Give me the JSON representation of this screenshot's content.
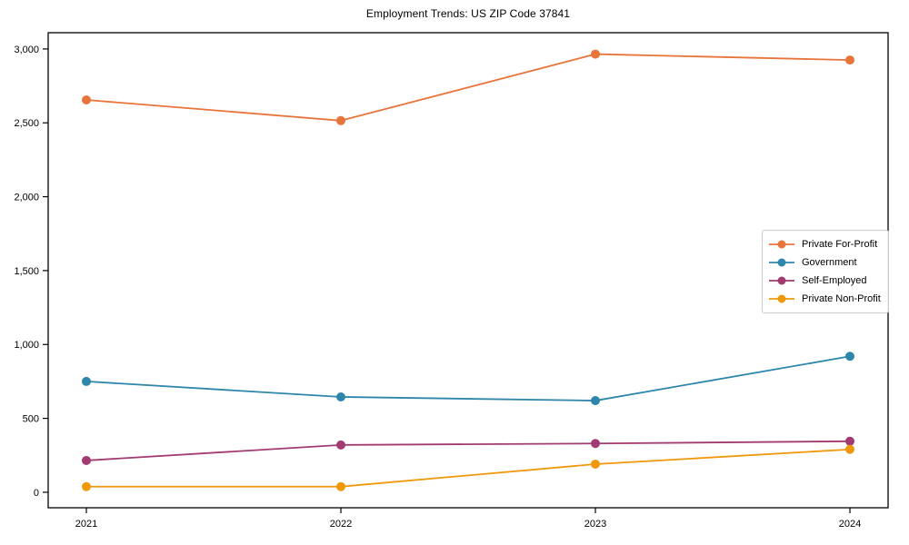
{
  "chart_data": {
    "type": "line",
    "title": "Employment Trends: US ZIP Code 37841",
    "x": [
      2021,
      2022,
      2023,
      2024
    ],
    "x_tick_labels": [
      "2021",
      "2022",
      "2023",
      "2024"
    ],
    "series": [
      {
        "name": "Private For-Profit",
        "color": "#E8743B",
        "values": [
          2655,
          2515,
          2965,
          2925
        ]
      },
      {
        "name": "Government",
        "color": "#2E86AB",
        "values": [
          750,
          645,
          620,
          920
        ]
      },
      {
        "name": "Self-Employed",
        "color": "#A23B72",
        "values": [
          215,
          320,
          330,
          345
        ]
      },
      {
        "name": "Private Non-Profit",
        "color": "#F0980B",
        "values": [
          38,
          38,
          190,
          290
        ]
      }
    ],
    "yticks": [
      0,
      500,
      1000,
      1500,
      2000,
      2500,
      3000
    ],
    "ytick_labels": [
      "0",
      "500",
      "1,000",
      "1,500",
      "2,000",
      "2,500",
      "3,000"
    ],
    "ylim": [
      -105,
      3110
    ],
    "xlim": [
      2020.85,
      2024.15
    ],
    "grid": false,
    "legend_position": "center-right",
    "axis_color": "#000000",
    "background_color": "#ffffff"
  }
}
